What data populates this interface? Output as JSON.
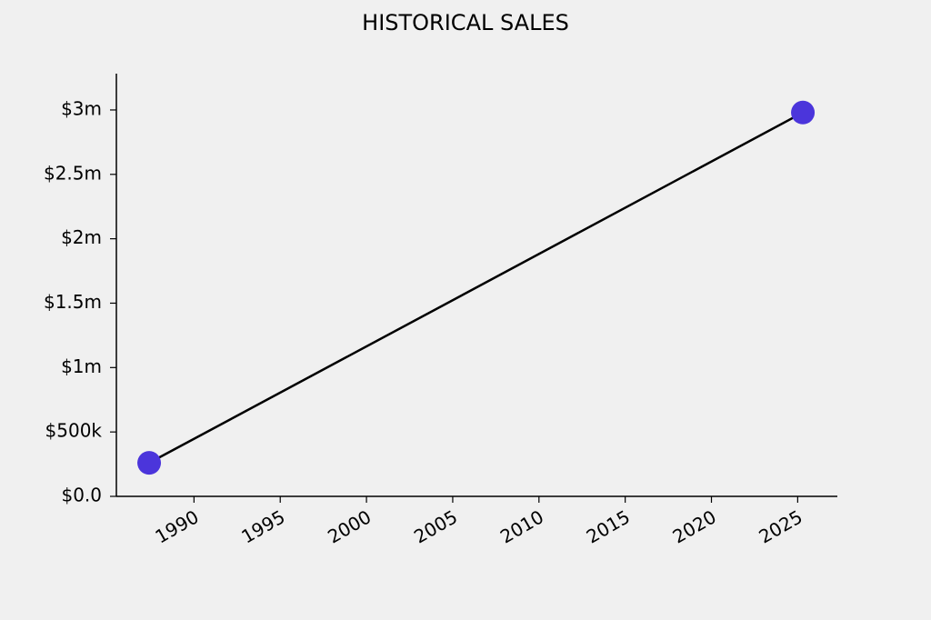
{
  "chart_data": {
    "type": "line",
    "title": "HISTORICAL SALES",
    "x": [
      1987.4,
      2025.3
    ],
    "values": [
      260000,
      2980000
    ],
    "color": "#4b35db",
    "line_color": "#000000",
    "xlim": [
      1985.5,
      2027.3
    ],
    "xticks": [
      1990,
      1995,
      2000,
      2005,
      2010,
      2015,
      2020,
      2025
    ],
    "ylim": [
      0,
      3282000
    ],
    "yticks": [
      {
        "value": 0,
        "label": "$0.0"
      },
      {
        "value": 500000,
        "label": "$500k"
      },
      {
        "value": 1000000,
        "label": "$1m"
      },
      {
        "value": 1500000,
        "label": "$1.5m"
      },
      {
        "value": 2000000,
        "label": "$2m"
      },
      {
        "value": 2500000,
        "label": "$2.5m"
      },
      {
        "value": 3000000,
        "label": "$3m"
      }
    ],
    "grid": false
  }
}
